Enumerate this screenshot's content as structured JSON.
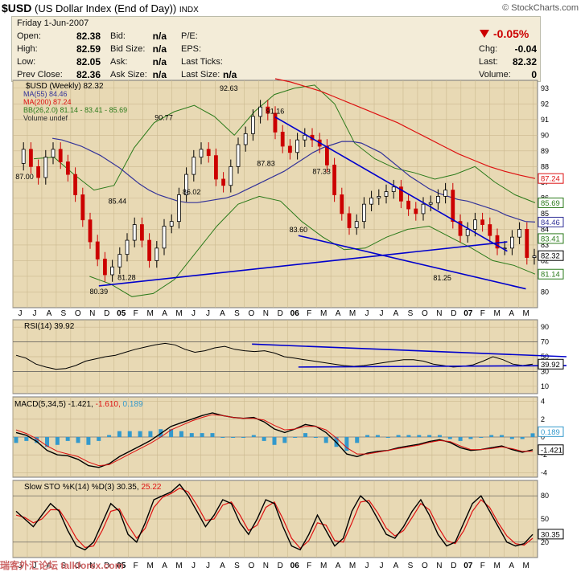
{
  "header": {
    "symbol": "$USD",
    "name": "(US Dollar Index (End of Day))",
    "exchange": "INDX",
    "brand": "© StockCharts.com"
  },
  "quote": {
    "date": "Friday  1-Jun-2007",
    "open_label": "Open:",
    "open": "82.38",
    "high_label": "High:",
    "high": "82.59",
    "low_label": "Low:",
    "low": "82.05",
    "prev_label": "Prev Close:",
    "prev": "82.36",
    "bid_label": "Bid:",
    "bid": "n/a",
    "bidsize_label": "Bid Size:",
    "bidsize": "n/a",
    "ask_label": "Ask:",
    "ask": "n/a",
    "asksize_label": "Ask Size:",
    "asksize": "n/a",
    "pe_label": "P/E:",
    "eps_label": "EPS:",
    "lastticks_label": "Last Ticks:",
    "lastsize_label": "Last Size:",
    "lastsize": "n/a",
    "change_pct": "-0.05%",
    "chg_label": "Chg:",
    "chg": "-0.04",
    "last_label": "Last:",
    "last": "82.32",
    "volume_label": "Volume:",
    "volume": "0"
  },
  "colors": {
    "panel_bg": "#e8d9b4",
    "price_up": "#000000",
    "price_down": "#cc0000",
    "ma55": "#333399",
    "ma200": "#dd1111",
    "bb": "#2a7a1a",
    "trend": "#0000cc",
    "rsi": "#000000",
    "macd": "#000000",
    "signal": "#dd1111",
    "hist": "#3399cc",
    "sto_k": "#000000",
    "sto_d": "#dd1111",
    "down_triangle": "#cc0000"
  },
  "chart_data": {
    "type": "candlestick-multi-panel",
    "x_axis_labels": [
      "J",
      "J",
      "A",
      "S",
      "O",
      "N",
      "D",
      "05",
      "F",
      "M",
      "A",
      "M",
      "J",
      "J",
      "A",
      "S",
      "O",
      "N",
      "D",
      "06",
      "F",
      "M",
      "A",
      "M",
      "J",
      "J",
      "A",
      "S",
      "O",
      "N",
      "D",
      "07",
      "F",
      "M",
      "A",
      "M"
    ],
    "price": {
      "legend": "$USD (Weekly) 82.32",
      "ma55_label": "MA(55) 84.46",
      "ma200_label": "MA(200) 87.24",
      "bb_label": "BB(26,2.0) 81.14 - 83.41 - 85.69",
      "volume_label": "Volume undef",
      "ylim": [
        79,
        93.5
      ],
      "yticks": [
        80,
        81,
        82,
        83,
        84,
        85,
        86,
        87,
        88,
        89,
        90,
        91,
        92,
        93
      ],
      "axis_badges": [
        {
          "value": 87.24,
          "label": "87.24",
          "color": "#dd1111"
        },
        {
          "value": 85.69,
          "label": "85.69",
          "color": "#2a7a1a"
        },
        {
          "value": 84.46,
          "label": "84.46",
          "color": "#333399"
        },
        {
          "value": 83.41,
          "label": "83.41",
          "color": "#2a7a1a"
        },
        {
          "value": 82.32,
          "label": "82.32",
          "color": "#000000"
        },
        {
          "value": 81.14,
          "label": "81.14",
          "color": "#2a7a1a"
        }
      ],
      "annotations": [
        {
          "x": 1,
          "y": 87.0,
          "label": "87.00"
        },
        {
          "x": 9,
          "y": 80.39,
          "label": "80.39"
        },
        {
          "x": 11,
          "y": 85.44,
          "label": "85.44"
        },
        {
          "x": 12,
          "y": 81.28,
          "label": "81.28"
        },
        {
          "x": 16,
          "y": 90.77,
          "label": "90.77"
        },
        {
          "x": 19,
          "y": 86.02,
          "label": "86.02"
        },
        {
          "x": 23,
          "y": 92.63,
          "label": "92.63"
        },
        {
          "x": 27,
          "y": 87.83,
          "label": "87.83"
        },
        {
          "x": 28,
          "y": 91.16,
          "label": "91.16"
        },
        {
          "x": 30.5,
          "y": 83.6,
          "label": "83.60"
        },
        {
          "x": 33,
          "y": 87.33,
          "label": "87.33"
        },
        {
          "x": 46,
          "y": 81.25,
          "label": "81.25"
        }
      ],
      "close": [
        88.2,
        89.1,
        88.0,
        87.3,
        88.6,
        89.1,
        88.3,
        87.5,
        86.2,
        84.6,
        83.2,
        82.1,
        81.1,
        81.6,
        82.4,
        83.3,
        84.3,
        83.3,
        82.0,
        82.8,
        84.2,
        84.5,
        86.2,
        87.5,
        88.6,
        89.1,
        88.7,
        87.2,
        86.8,
        88.0,
        89.4,
        90.1,
        91.2,
        91.8,
        91.4,
        90.2,
        89.3,
        88.9,
        89.7,
        90.0,
        89.7,
        89.3,
        88.1,
        86.2,
        85.0,
        84.1,
        84.5,
        85.6,
        86.0,
        86.1,
        86.4,
        86.7,
        85.8,
        85.3,
        85.0,
        85.6,
        85.7,
        86.1,
        86.5,
        84.5,
        83.6,
        84.0,
        84.6,
        84.3,
        83.6,
        82.8,
        82.8,
        83.5,
        84.0,
        82.2,
        82.3
      ],
      "ma55": [
        89.8,
        89.7,
        89.5,
        89.3,
        89.0,
        88.7,
        88.3,
        87.9,
        87.4,
        86.9,
        86.5,
        86.2,
        86.0,
        85.8,
        85.7,
        85.7,
        85.8,
        85.9,
        86.0,
        86.2,
        86.5,
        86.8,
        87.1,
        87.4,
        87.7,
        88.1,
        88.5,
        88.9,
        89.2,
        89.4,
        89.6,
        89.6,
        89.5,
        89.2,
        88.9,
        88.4,
        87.9,
        87.4,
        87.0,
        86.6,
        86.3,
        86.1,
        85.9,
        85.8,
        85.6,
        85.4,
        85.2,
        84.9,
        84.7,
        84.5,
        84.46
      ],
      "ma200": [
        93.6,
        93.4,
        93.1,
        92.8,
        92.4,
        92.0,
        91.6,
        91.2,
        90.8,
        90.3,
        89.8,
        89.3,
        88.8,
        88.4,
        88.0,
        87.7,
        87.45,
        87.24
      ],
      "bb_upper": [
        88.5,
        88.6,
        87.5,
        86.5,
        86.8,
        89.2,
        90.8,
        91.5,
        91.9,
        91.2,
        90.0,
        91.5,
        92.6,
        93.0,
        93.2,
        92.0,
        89.5,
        88.5,
        87.9,
        87.6,
        87.2,
        87.5,
        88.0,
        87.0,
        86.2,
        85.69
      ],
      "bb_lower": [
        81.0,
        80.5,
        79.7,
        79.9,
        80.8,
        82.5,
        84.2,
        85.6,
        86.1,
        85.8,
        84.5,
        83.5,
        82.7,
        82.8,
        83.5,
        84.0,
        84.2,
        83.5,
        82.8,
        82.0,
        81.7,
        81.14
      ],
      "trendlines": [
        {
          "x1": 9,
          "y1": 80.39,
          "x2": 53,
          "y2": 83.2
        },
        {
          "x1": 28,
          "y1": 91.16,
          "x2": 53,
          "y2": 82.6
        },
        {
          "x1": 30.5,
          "y1": 83.6,
          "x2": 55,
          "y2": 80.2
        }
      ]
    },
    "rsi": {
      "legend": "RSI(14) 39.92",
      "ylim": [
        0,
        100
      ],
      "yticks": [
        10,
        30,
        50,
        70,
        90
      ],
      "badge": "39.92",
      "values": [
        52,
        48,
        40,
        36,
        33,
        34,
        38,
        44,
        47,
        50,
        52,
        56,
        60,
        63,
        66,
        68,
        66,
        60,
        56,
        58,
        62,
        64,
        60,
        58,
        57,
        58,
        55,
        50,
        48,
        46,
        44,
        42,
        40,
        38,
        37,
        38,
        40,
        42,
        44,
        46,
        46,
        44,
        40,
        38,
        36,
        37,
        39,
        44,
        50,
        46,
        40,
        38,
        40
      ]
    },
    "macd": {
      "legend": "MACD(5,34,5)",
      "macd_value": "-1.421",
      "signal_value": "-1.610",
      "hist_value": "0.189",
      "ylim": [
        -4.5,
        4.5
      ],
      "yticks": [
        4,
        2,
        0,
        -2,
        -4
      ],
      "badges": [
        {
          "label": "0.189"
        },
        {
          "label": "-1.421"
        }
      ],
      "macd": [
        0.5,
        0.2,
        -0.5,
        -1.5,
        -2.0,
        -2.1,
        -2.5,
        -3.2,
        -3.4,
        -3.0,
        -2.2,
        -1.6,
        -1.0,
        -0.4,
        0.4,
        1.2,
        1.6,
        2.0,
        2.4,
        2.7,
        2.4,
        2.2,
        2.1,
        2.2,
        1.7,
        0.9,
        0.5,
        0.9,
        1.4,
        1.2,
        0.5,
        -0.6,
        -1.9,
        -2.2,
        -1.8,
        -1.6,
        -1.5,
        -1.2,
        -1.0,
        -0.8,
        -0.5,
        -0.3,
        -0.6,
        -1.2,
        -1.5,
        -1.4,
        -1.2,
        -1.0,
        -1.4,
        -1.7,
        -1.42
      ],
      "signal": [
        0.8,
        0.4,
        -0.2,
        -1.0,
        -1.6,
        -1.9,
        -2.2,
        -2.8,
        -3.2,
        -3.1,
        -2.5,
        -1.9,
        -1.3,
        -0.7,
        0.0,
        0.8,
        1.3,
        1.8,
        2.2,
        2.5,
        2.4,
        2.2,
        2.1,
        2.1,
        1.9,
        1.3,
        0.8,
        0.9,
        1.2,
        1.2,
        0.8,
        -0.1,
        -1.2,
        -1.9,
        -1.9,
        -1.7,
        -1.5,
        -1.3,
        -1.1,
        -0.9,
        -0.6,
        -0.4,
        -0.5,
        -1.0,
        -1.4,
        -1.4,
        -1.3,
        -1.1,
        -1.3,
        -1.6,
        -1.61
      ]
    },
    "sto": {
      "legend": "Slow STO %K(14) %D(3) 30.35,",
      "d_value": "25.22",
      "ylim": [
        0,
        100
      ],
      "yticks": [
        80,
        50,
        20
      ],
      "badge": "30.35",
      "k": [
        60,
        50,
        40,
        55,
        70,
        60,
        35,
        15,
        10,
        20,
        45,
        70,
        60,
        30,
        20,
        45,
        75,
        80,
        85,
        95,
        80,
        60,
        40,
        55,
        75,
        70,
        45,
        30,
        50,
        75,
        70,
        40,
        15,
        10,
        30,
        55,
        35,
        15,
        25,
        60,
        80,
        70,
        50,
        30,
        25,
        40,
        60,
        75,
        55,
        30,
        15,
        20,
        45,
        70,
        80,
        60,
        40,
        20,
        15,
        18,
        30
      ],
      "d": [
        55,
        52,
        45,
        50,
        62,
        62,
        45,
        25,
        13,
        15,
        35,
        60,
        63,
        42,
        25,
        38,
        65,
        78,
        83,
        90,
        85,
        68,
        48,
        50,
        68,
        72,
        55,
        35,
        42,
        65,
        72,
        50,
        25,
        12,
        22,
        45,
        42,
        22,
        20,
        45,
        72,
        74,
        58,
        38,
        28,
        35,
        52,
        70,
        62,
        40,
        22,
        18,
        35,
        60,
        75,
        65,
        45,
        28,
        18,
        16,
        25
      ]
    }
  },
  "watermark": "瑞客外汇论坛 talkforex.com"
}
